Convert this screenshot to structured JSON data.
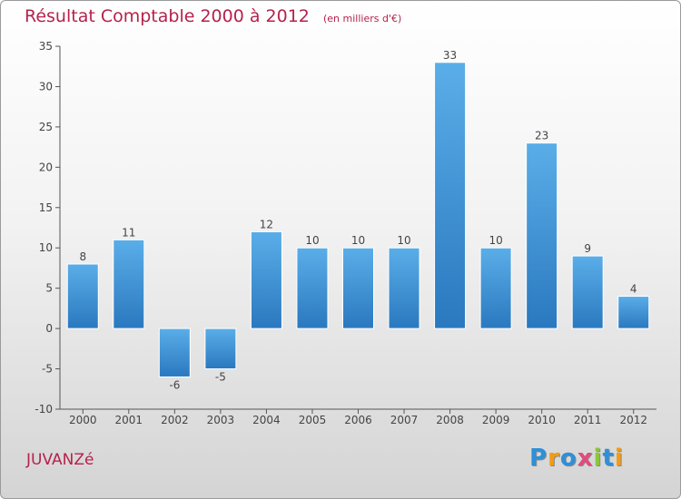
{
  "header": {
    "title": "Résultat Comptable 2000 à 2012",
    "unit": "(en milliers d'€)"
  },
  "footer": {
    "commune": "JUVANZé",
    "brand": "Proxiti",
    "brand_letters": [
      {
        "char": "P",
        "color": "#2f8fd8"
      },
      {
        "char": "r",
        "color": "#f39c12"
      },
      {
        "char": "o",
        "color": "#2f8fd8"
      },
      {
        "char": "x",
        "color": "#e24a7f"
      },
      {
        "char": "i",
        "color": "#8cc63f"
      },
      {
        "char": "t",
        "color": "#2f8fd8"
      },
      {
        "char": "i",
        "color": "#f39c12"
      }
    ]
  },
  "colors": {
    "title": "#b5224b",
    "bar_light": "#5aaee8",
    "bar_dark": "#2a78bf",
    "axis": "#555555",
    "label": "#444444"
  },
  "chart_data": {
    "type": "bar",
    "title": "Résultat Comptable 2000 à 2012",
    "ylabel": "(en milliers d'€)",
    "xlabel": "",
    "categories": [
      "2000",
      "2001",
      "2002",
      "2003",
      "2004",
      "2005",
      "2006",
      "2007",
      "2008",
      "2009",
      "2010",
      "2011",
      "2012"
    ],
    "values": [
      8,
      11,
      -6,
      -5,
      12,
      10,
      10,
      10,
      33,
      10,
      23,
      9,
      4
    ],
    "ylim": [
      -10,
      35
    ],
    "yticks": [
      -10,
      -5,
      0,
      5,
      10,
      15,
      20,
      25,
      30,
      35
    ],
    "grid": false,
    "legend": "none"
  }
}
